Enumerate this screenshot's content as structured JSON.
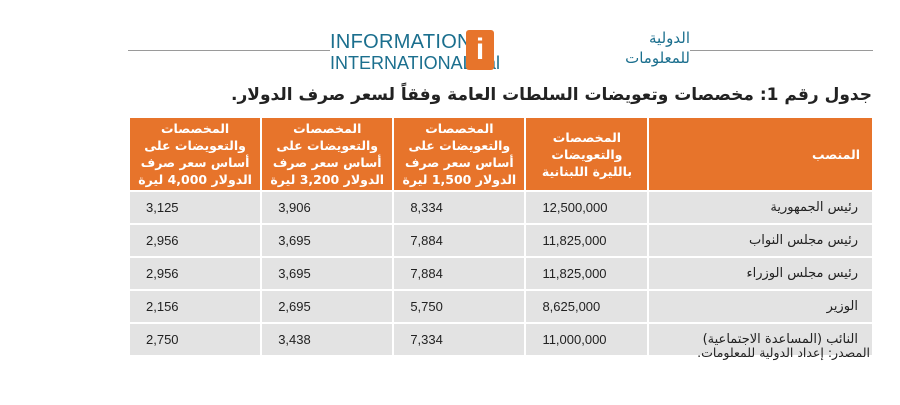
{
  "logo": {
    "en_line1": "INFORMATION",
    "en_line2": "INTERNATIONAL sal",
    "mark": "i",
    "ar_line1": "الدولية",
    "ar_line2": "للمعلومات"
  },
  "title": "جدول رقم 1: مخصصات وتعويضات السلطات العامة وفقاً لسعر صرف الدولار.",
  "table": {
    "headers": [
      "المنصب",
      "المخصصات والتعويضات بالليرة اللبنانية",
      "المخصصات والتعويضات على أساس سعر صرف الدولار 1,500 ليرة",
      "المخصصات والتعويضات على أساس سعر صرف الدولار 3,200 ليرة",
      "المخصصات والتعويضات على أساس سعر صرف الدولار 4,000 ليرة"
    ],
    "rows": [
      [
        "رئيس الجمهورية",
        "12,500,000",
        "8,334",
        "3,906",
        "3,125"
      ],
      [
        "رئيس مجلس النواب",
        "11,825,000",
        "7,884",
        "3,695",
        "2,956"
      ],
      [
        "رئيس مجلس الوزراء",
        "11,825,000",
        "7,884",
        "3,695",
        "2,956"
      ],
      [
        "الوزير",
        "8,625,000",
        "5,750",
        "2,695",
        "2,156"
      ],
      [
        "النائب (المساعدة الاجتماعية)",
        "11,000,000",
        "7,334",
        "3,438",
        "2,750"
      ]
    ]
  },
  "source": "المصدر: إعداد الدولية للمعلومات.",
  "colors": {
    "header_bg": "#e7742b",
    "row_bg": "#e3e3e3",
    "brand_blue": "#1b6f8e"
  }
}
